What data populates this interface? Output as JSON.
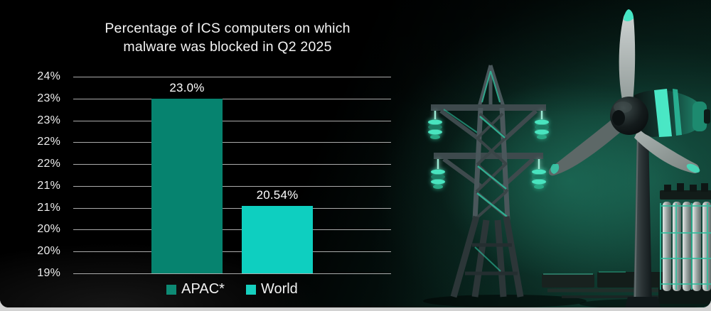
{
  "chart_data": {
    "type": "bar",
    "title": "Percentage of ICS computers on which malware was blocked in Q2 2025",
    "title_lines": [
      "Percentage of ICS computers on which",
      "malware was blocked in Q2 2025"
    ],
    "categories": [
      "APAC*",
      "World"
    ],
    "values": [
      23.0,
      20.54
    ],
    "value_labels": [
      "23.0%",
      "20.54%"
    ],
    "bar_colors": [
      "#06836f",
      "#0ecfc0"
    ],
    "ylim": [
      19.0,
      23.5
    ],
    "ytick_step": 0.5,
    "ytick_labels_top_to_bottom": [
      "24%",
      "23%",
      "23%",
      "22%",
      "22%",
      "21%",
      "21%",
      "20%",
      "20%",
      "19%"
    ],
    "grid": true,
    "legend_position": "bottom",
    "legend": [
      {
        "label": "APAC*",
        "color": "#0d8a74"
      },
      {
        "label": "World",
        "color": "#16cfbe"
      }
    ]
  },
  "illustration": {
    "icons": [
      "transmission-tower",
      "wind-turbine",
      "battery-bank"
    ],
    "accent_color": "#38d8b4"
  },
  "theme": {
    "background": "#000000",
    "text_color": "#f2f2f2",
    "gridline_color": "#c9c9c9",
    "bottom_strip_color": "#d2d2d2"
  }
}
